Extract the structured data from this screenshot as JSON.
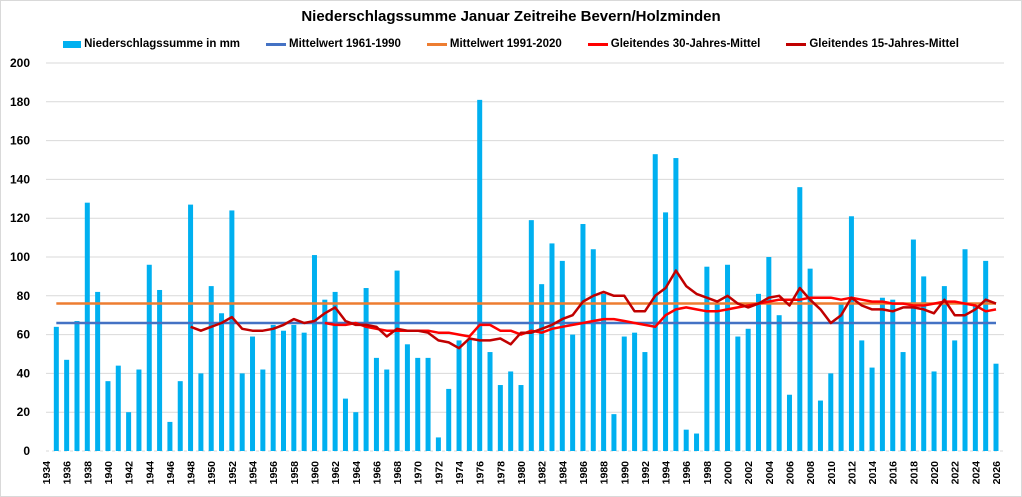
{
  "chart_data": {
    "type": "bar",
    "title": "Niederschlagssumme Januar Zeitreihe Bevern/Holzminden",
    "xlabel": "",
    "ylabel": "",
    "ylim": [
      0,
      200
    ],
    "xlim": [
      1934,
      2026
    ],
    "grid": true,
    "legend_position": "top",
    "y_ticks": [
      "0",
      "20",
      "40",
      "60",
      "80",
      "100",
      "120",
      "140",
      "160",
      "180",
      "200"
    ],
    "x_ticks": [
      "1934",
      "1936",
      "1938",
      "1940",
      "1942",
      "1944",
      "1946",
      "1948",
      "1950",
      "1952",
      "1954",
      "1956",
      "1958",
      "1960",
      "1962",
      "1964",
      "1966",
      "1968",
      "1970",
      "1972",
      "1974",
      "1976",
      "1978",
      "1980",
      "1982",
      "1984",
      "1986",
      "1988",
      "1990",
      "1992",
      "1994",
      "1996",
      "1998",
      "2000",
      "2002",
      "2004",
      "2006",
      "2008",
      "2010",
      "2012",
      "2014",
      "2016",
      "2018",
      "2020",
      "2022",
      "2024",
      "2026"
    ],
    "colors": {
      "bars": "#00b0f0",
      "mean_1961_1990": "#4472c4",
      "mean_1991_2020": "#ed7d31",
      "moving_30": "#ff0000",
      "moving_15": "#c00000",
      "grid": "#d9d9d9"
    },
    "legend": [
      "Niederschlagssumme in mm",
      "Mittelwert 1961-1990",
      "Mittelwert 1991-2020",
      "Gleitendes 30-Jahres-Mittel",
      "Gleitendes 15-Jahres-Mittel"
    ],
    "bars": {
      "name": "Niederschlagssumme in mm",
      "years": [
        1935,
        1936,
        1937,
        1938,
        1939,
        1940,
        1941,
        1942,
        1943,
        1944,
        1945,
        1946,
        1947,
        1948,
        1949,
        1950,
        1951,
        1952,
        1953,
        1954,
        1955,
        1956,
        1957,
        1958,
        1959,
        1960,
        1961,
        1962,
        1963,
        1964,
        1965,
        1966,
        1967,
        1968,
        1969,
        1970,
        1971,
        1972,
        1973,
        1974,
        1975,
        1976,
        1977,
        1978,
        1979,
        1980,
        1981,
        1982,
        1983,
        1984,
        1985,
        1986,
        1987,
        1988,
        1989,
        1990,
        1991,
        1992,
        1993,
        1994,
        1995,
        1996,
        1997,
        1998,
        1999,
        2000,
        2001,
        2002,
        2003,
        2004,
        2005,
        2006,
        2007,
        2008,
        2009,
        2010,
        2011,
        2012,
        2013,
        2014,
        2015,
        2016,
        2017,
        2018,
        2019,
        2020,
        2021,
        2022,
        2023,
        2024,
        2025,
        2026
      ],
      "values": [
        64,
        47,
        67,
        128,
        82,
        36,
        44,
        20,
        42,
        96,
        83,
        15,
        36,
        127,
        40,
        85,
        71,
        124,
        40,
        59,
        42,
        65,
        62,
        65,
        61,
        101,
        78,
        82,
        27,
        20,
        84,
        48,
        42,
        93,
        55,
        48,
        48,
        7,
        32,
        57,
        58,
        181,
        51,
        34,
        41,
        34,
        119,
        86,
        107,
        98,
        60,
        117,
        104,
        81,
        19,
        59,
        61,
        51,
        153,
        123,
        151,
        11,
        9,
        95,
        76,
        96,
        59,
        63,
        81,
        100,
        70,
        29,
        136,
        94,
        26,
        40,
        76,
        121,
        57,
        43,
        79,
        78,
        51,
        109,
        90,
        41,
        85,
        57,
        104,
        75,
        98,
        45
      ]
    },
    "mean_1961_1990": {
      "name": "Mittelwert 1961-1990",
      "value": 66,
      "from": 1935,
      "to": 2026
    },
    "mean_1991_2020": {
      "name": "Mittelwert 1991-2020",
      "value": 76,
      "from": 1935,
      "to": 2026
    },
    "moving_30": {
      "name": "Gleitendes 30-Jahres-Mittel",
      "years": [
        1961,
        1962,
        1963,
        1964,
        1965,
        1966,
        1967,
        1968,
        1969,
        1970,
        1971,
        1972,
        1973,
        1974,
        1975,
        1976,
        1977,
        1978,
        1979,
        1980,
        1981,
        1982,
        1983,
        1984,
        1985,
        1986,
        1987,
        1988,
        1989,
        1990,
        1991,
        1992,
        1993,
        1994,
        1995,
        1996,
        1997,
        1998,
        1999,
        2000,
        2001,
        2002,
        2003,
        2004,
        2005,
        2006,
        2007,
        2008,
        2009,
        2010,
        2011,
        2012,
        2013,
        2014,
        2015,
        2016,
        2017,
        2018,
        2019,
        2020,
        2021,
        2022,
        2023,
        2024,
        2025,
        2026
      ],
      "values": [
        66,
        65,
        65,
        66,
        64,
        63,
        62,
        62,
        62,
        62,
        62,
        61,
        61,
        60,
        59,
        65,
        65,
        62,
        62,
        60,
        62,
        61,
        63,
        64,
        65,
        66,
        67,
        68,
        68,
        67,
        66,
        65,
        64,
        70,
        73,
        74,
        73,
        72,
        72,
        73,
        74,
        75,
        76,
        77,
        78,
        78,
        78,
        79,
        79,
        79,
        78,
        79,
        78,
        77,
        77,
        76,
        76,
        75,
        75,
        76,
        77,
        77,
        76,
        75,
        72,
        73
      ]
    },
    "moving_15": {
      "name": "Gleitendes 15-Jahres-Mittel",
      "years": [
        1948,
        1949,
        1950,
        1951,
        1952,
        1953,
        1954,
        1955,
        1956,
        1957,
        1958,
        1959,
        1960,
        1961,
        1962,
        1963,
        1964,
        1965,
        1966,
        1967,
        1968,
        1969,
        1970,
        1971,
        1972,
        1973,
        1974,
        1975,
        1976,
        1977,
        1978,
        1979,
        1980,
        1981,
        1982,
        1983,
        1984,
        1985,
        1986,
        1987,
        1988,
        1989,
        1990,
        1991,
        1992,
        1993,
        1994,
        1995,
        1996,
        1997,
        1998,
        1999,
        2000,
        2001,
        2002,
        2003,
        2004,
        2005,
        2006,
        2007,
        2008,
        2009,
        2010,
        2011,
        2012,
        2013,
        2014,
        2015,
        2016,
        2017,
        2018,
        2019,
        2020,
        2021,
        2022,
        2023,
        2024,
        2025,
        2026
      ],
      "values": [
        64,
        62,
        64,
        66,
        69,
        63,
        62,
        62,
        63,
        65,
        68,
        66,
        67,
        71,
        74,
        67,
        65,
        65,
        64,
        59,
        63,
        62,
        62,
        61,
        57,
        56,
        53,
        58,
        57,
        57,
        58,
        55,
        61,
        61,
        63,
        65,
        68,
        70,
        77,
        80,
        82,
        80,
        80,
        72,
        72,
        80,
        84,
        93,
        85,
        81,
        79,
        77,
        80,
        76,
        74,
        76,
        79,
        80,
        75,
        84,
        78,
        73,
        66,
        70,
        79,
        75,
        73,
        73,
        72,
        74,
        74,
        73,
        71,
        78,
        70,
        70,
        73,
        78,
        76
      ]
    }
  }
}
